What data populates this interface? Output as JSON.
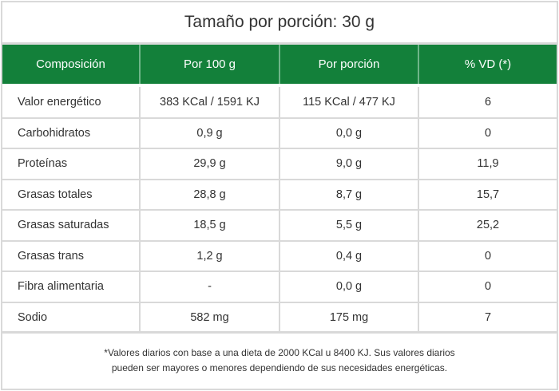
{
  "title": "Tamaño por porción: 30 g",
  "headers": [
    "Composición",
    "Por 100 g",
    "Por porción",
    "% VD (*)"
  ],
  "rows": [
    [
      "Valor energético",
      "383 KCal / 1591 KJ",
      "115 KCal / 477 KJ",
      "6"
    ],
    [
      "Carbohidratos",
      "0,9 g",
      "0,0 g",
      "0"
    ],
    [
      "Proteínas",
      "29,9 g",
      "9,0 g",
      "11,9"
    ],
    [
      "Grasas totales",
      "28,8 g",
      "8,7 g",
      "15,7"
    ],
    [
      "Grasas saturadas",
      "18,5 g",
      "5,5 g",
      "25,2"
    ],
    [
      "Grasas trans",
      "1,2 g",
      "0,4 g",
      "0"
    ],
    [
      "Fibra alimentaria",
      "-",
      "0,0 g",
      "0"
    ],
    [
      "Sodio",
      "582 mg",
      "175 mg",
      "7"
    ]
  ],
  "footnote": {
    "line1": "*Valores diarios con base a una dieta de 2000 KCal u 8400 KJ. Sus valores diarios",
    "line2": "pueden ser mayores o menores dependiendo de sus necesidades energéticas."
  },
  "colors": {
    "header_bg": "#13803a",
    "border": "#d9d9d9",
    "text": "#333333"
  }
}
